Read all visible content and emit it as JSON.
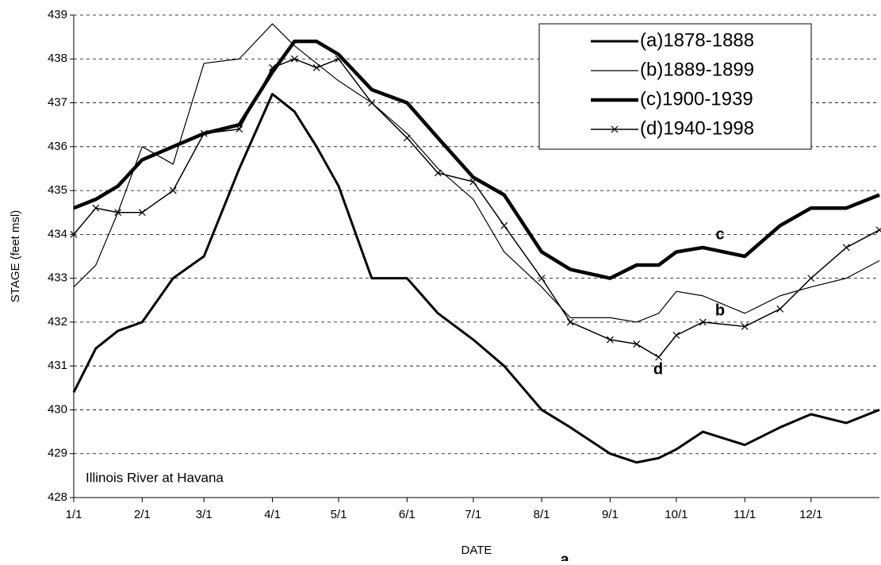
{
  "chart_data": {
    "type": "line",
    "x_label": "DATE",
    "y_label": "STAGE (feet msl)",
    "x": [
      0,
      10,
      20,
      31,
      45,
      59,
      75,
      90,
      100,
      110,
      120,
      135,
      151,
      165,
      181,
      195,
      212,
      225,
      243,
      255,
      265,
      273,
      285,
      304,
      320,
      334,
      350,
      365
    ],
    "series": [
      {
        "name": "(a)1878-1888",
        "color": "#000000",
        "width": 3,
        "values": [
          430.4,
          431.4,
          431.8,
          432.0,
          433.0,
          433.5,
          435.5,
          437.2,
          436.8,
          436.0,
          435.1,
          433.0,
          433.0,
          432.2,
          431.6,
          431.0,
          430.0,
          429.6,
          429.0,
          428.8,
          428.9,
          429.1,
          429.5,
          429.2,
          429.6,
          429.9,
          429.7,
          430.0
        ]
      },
      {
        "name": "(b)1889-1899",
        "color": "#000000",
        "width": 1.2,
        "values": [
          432.8,
          433.3,
          434.5,
          436.0,
          435.6,
          437.9,
          438.0,
          438.8,
          438.3,
          437.9,
          437.5,
          437.0,
          436.3,
          435.5,
          434.8,
          433.6,
          432.8,
          432.1,
          432.1,
          432.0,
          432.2,
          432.7,
          432.6,
          432.2,
          432.6,
          432.8,
          433.0,
          433.4
        ]
      },
      {
        "name": "(c)1900-1939",
        "color": "#000000",
        "width": 4.5,
        "values": [
          434.6,
          434.8,
          435.1,
          435.7,
          436.0,
          436.3,
          436.5,
          437.7,
          438.4,
          438.4,
          438.1,
          437.3,
          437.0,
          436.2,
          435.3,
          434.9,
          433.6,
          433.2,
          433.0,
          433.3,
          433.3,
          433.6,
          433.7,
          433.5,
          434.2,
          434.6,
          434.6,
          434.9
        ]
      },
      {
        "name": "(d)1940-1998",
        "color": "#000000",
        "width": 1.5,
        "marker": "x",
        "values": [
          434.0,
          434.6,
          434.5,
          434.5,
          435.0,
          436.3,
          436.4,
          437.8,
          438.0,
          437.8,
          438.0,
          437.0,
          436.2,
          435.4,
          435.2,
          434.2,
          433.0,
          432.0,
          431.6,
          431.5,
          431.2,
          431.7,
          432.0,
          431.9,
          432.3,
          433.0,
          433.7,
          434.1
        ]
      }
    ],
    "xlim": [
      0,
      365
    ],
    "xticks": [
      {
        "value": 0,
        "label": "1/1"
      },
      {
        "value": 31,
        "label": "2/1"
      },
      {
        "value": 59,
        "label": "3/1"
      },
      {
        "value": 90,
        "label": "4/1"
      },
      {
        "value": 120,
        "label": "5/1"
      },
      {
        "value": 151,
        "label": "6/1"
      },
      {
        "value": 181,
        "label": "7/1"
      },
      {
        "value": 212,
        "label": "8/1"
      },
      {
        "value": 243,
        "label": "9/1"
      },
      {
        "value": 273,
        "label": "10/1"
      },
      {
        "value": 304,
        "label": "11/1"
      },
      {
        "value": 334,
        "label": "12/1"
      }
    ],
    "ylim": [
      428,
      439
    ],
    "yticks": [
      428,
      429,
      430,
      431,
      432,
      433,
      434,
      435,
      436,
      437,
      438,
      439
    ],
    "grid": true,
    "legend": "upper right",
    "annotations": [
      "a",
      "b",
      "c",
      "d",
      "Illinois River at Havana"
    ]
  }
}
